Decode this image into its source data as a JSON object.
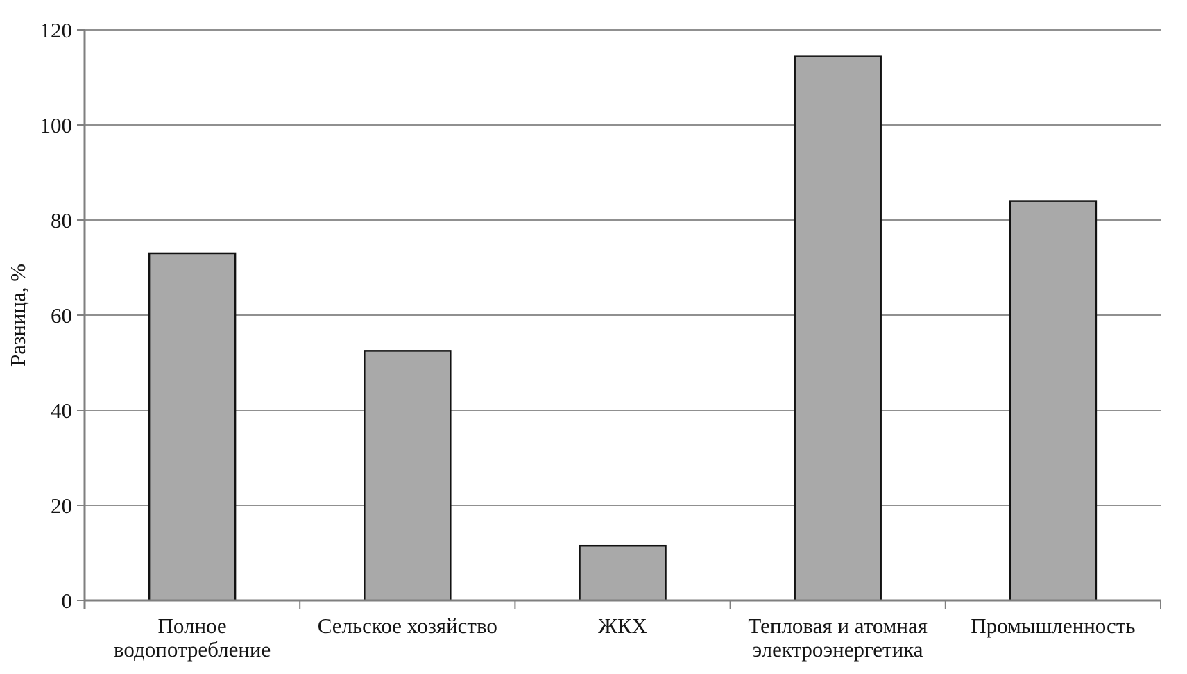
{
  "chart_data": {
    "type": "bar",
    "title": "",
    "categories": [
      "Полное водопотребление",
      "Сельское хозяйство",
      "ЖКХ",
      "Тепловая и атомная электроэнергетика",
      "Промышленность"
    ],
    "category_label_lines": [
      [
        "Полное",
        "водопотребление"
      ],
      [
        "Сельское хозяйство"
      ],
      [
        "ЖКХ"
      ],
      [
        "Тепловая и атомная",
        "электроэнергетика"
      ],
      [
        "Промышленность"
      ]
    ],
    "values": [
      73,
      52.5,
      11.5,
      114.5,
      84
    ],
    "xlabel": "",
    "ylabel": "Разница, %",
    "ylim": [
      0,
      120
    ],
    "yticks": [
      0,
      20,
      40,
      60,
      80,
      100,
      120
    ],
    "grid": "horizontal-only",
    "legend": "none",
    "colors": {
      "bar_fill": "#a9a9a9",
      "bar_border": "#121212",
      "gridline": "#909090",
      "axis": "#7f7f7f",
      "text": "#151515",
      "background": "#ffffff"
    }
  }
}
